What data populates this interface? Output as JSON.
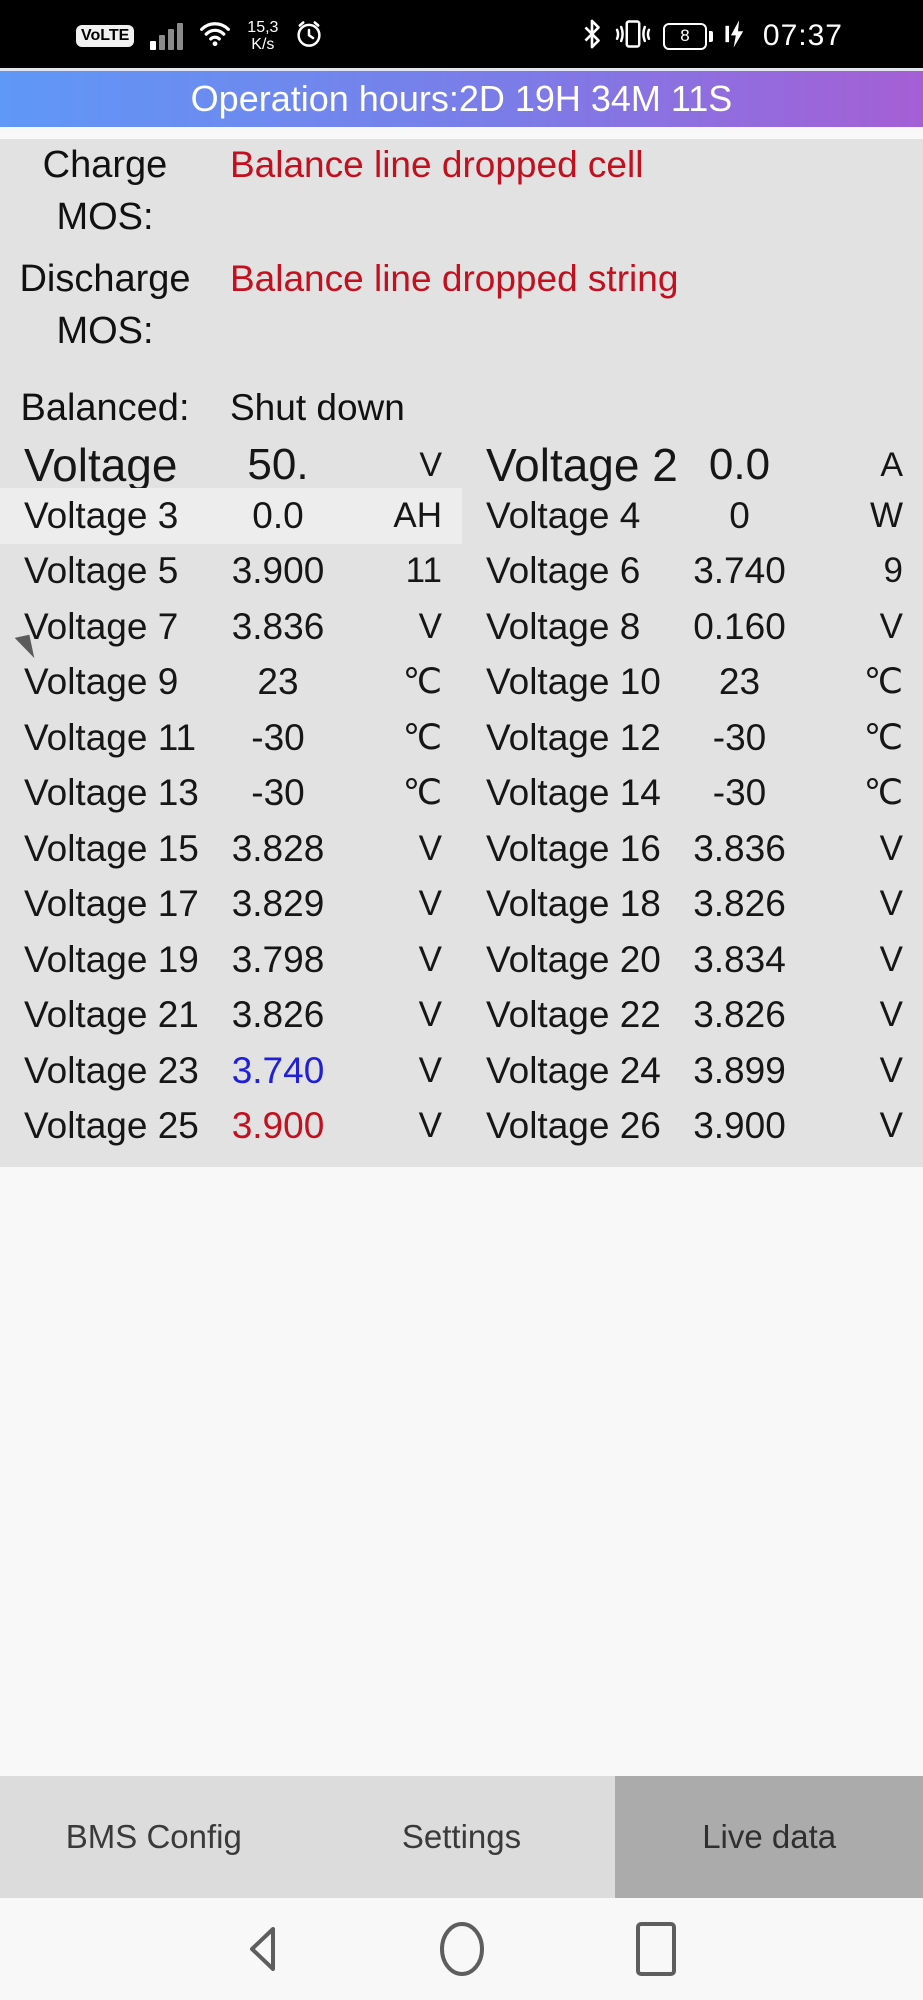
{
  "status_bar": {
    "volte_badge": "VoLTE",
    "network_speed_value": "15,3",
    "network_speed_unit": "K/s",
    "battery_level": "8",
    "time": "07:37",
    "icons": [
      "signal-bars-icon",
      "wifi-icon",
      "alarm-clock-icon",
      "bluetooth-icon",
      "vibrate-icon",
      "battery-icon",
      "charging-bolt-icon"
    ]
  },
  "header": {
    "title": "Operation hours:2D 19H 34M 11S"
  },
  "info": {
    "rows": [
      {
        "label": "Charge MOS:",
        "value": "Balance line dropped cell",
        "value_color": "red"
      },
      {
        "label": "Discharge MOS:",
        "value": "Balance line dropped string",
        "value_color": "red"
      },
      {
        "label": "Balanced:",
        "value": "Shut down",
        "value_color": "black"
      }
    ]
  },
  "table": {
    "hero": {
      "left": {
        "label": "Voltage",
        "value": "50.",
        "unit": "V"
      },
      "right": {
        "label": "Voltage 2",
        "value": "0.0",
        "unit": "A"
      }
    },
    "rows": [
      {
        "left": {
          "label": "Voltage 3",
          "value": "0.0",
          "unit": "AH",
          "highlight": true
        },
        "right": {
          "label": "Voltage 4",
          "value": "0",
          "unit": "W"
        }
      },
      {
        "left": {
          "label": "Voltage 5",
          "value": "3.900",
          "unit": "11"
        },
        "right": {
          "label": "Voltage 6",
          "value": "3.740",
          "unit": "9"
        }
      },
      {
        "left": {
          "label": "Voltage 7",
          "value": "3.836",
          "unit": "V"
        },
        "right": {
          "label": "Voltage 8",
          "value": "0.160",
          "unit": "V"
        }
      },
      {
        "left": {
          "label": "Voltage 9",
          "value": "23",
          "unit": "℃"
        },
        "right": {
          "label": "Voltage 10",
          "value": "23",
          "unit": "℃"
        }
      },
      {
        "left": {
          "label": "Voltage 11",
          "value": "-30",
          "unit": "℃"
        },
        "right": {
          "label": "Voltage 12",
          "value": "-30",
          "unit": "℃"
        }
      },
      {
        "left": {
          "label": "Voltage 13",
          "value": "-30",
          "unit": "℃"
        },
        "right": {
          "label": "Voltage 14",
          "value": "-30",
          "unit": "℃"
        }
      },
      {
        "left": {
          "label": "Voltage 15",
          "value": "3.828",
          "unit": "V"
        },
        "right": {
          "label": "Voltage 16",
          "value": "3.836",
          "unit": "V"
        }
      },
      {
        "left": {
          "label": "Voltage 17",
          "value": "3.829",
          "unit": "V"
        },
        "right": {
          "label": "Voltage 18",
          "value": "3.826",
          "unit": "V"
        }
      },
      {
        "left": {
          "label": "Voltage 19",
          "value": "3.798",
          "unit": "V"
        },
        "right": {
          "label": "Voltage 20",
          "value": "3.834",
          "unit": "V"
        }
      },
      {
        "left": {
          "label": "Voltage 21",
          "value": "3.826",
          "unit": "V"
        },
        "right": {
          "label": "Voltage 22",
          "value": "3.826",
          "unit": "V"
        }
      },
      {
        "left": {
          "label": "Voltage 23",
          "value": "3.740",
          "unit": "V",
          "value_color": "blue"
        },
        "right": {
          "label": "Voltage 24",
          "value": "3.899",
          "unit": "V"
        }
      },
      {
        "left": {
          "label": "Voltage 25",
          "value": "3.900",
          "unit": "V",
          "value_color": "red"
        },
        "right": {
          "label": "Voltage 26",
          "value": "3.900",
          "unit": "V"
        }
      }
    ]
  },
  "tabs": [
    {
      "label": "BMS Config",
      "active": false
    },
    {
      "label": "Settings",
      "active": false
    },
    {
      "label": "Live data",
      "active": true
    }
  ],
  "nav_bar": {
    "buttons": [
      "back",
      "home",
      "recents"
    ]
  },
  "colors": {
    "grad_left": "#5f98f7",
    "grad_right": "#a55fd5",
    "alert_red": "#c30f1e",
    "value_blue": "#2020d8",
    "content_bg": "#e2e2e2",
    "highlight_bg": "#ededed",
    "tab_bg": "#dcdcdc",
    "tab_active_bg": "#ababab"
  }
}
